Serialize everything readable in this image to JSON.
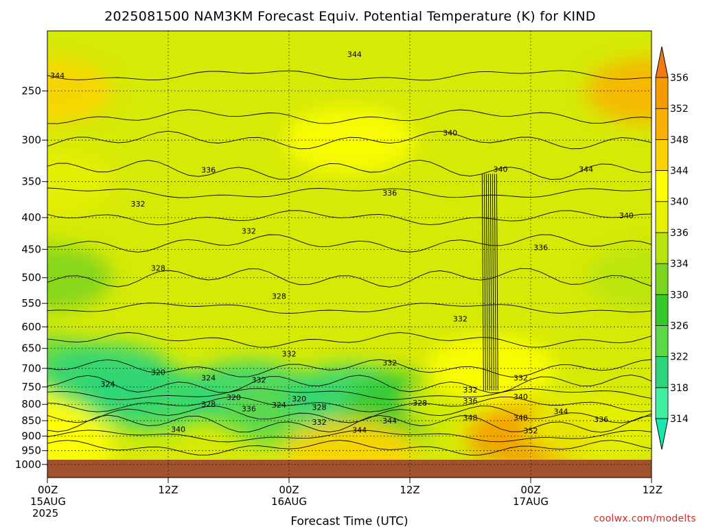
{
  "chart_data": {
    "type": "heatmap",
    "title": "2025081500 NAM3KM Forecast Equiv. Potential Temperature (K) for KIND",
    "xlabel": "Forecast Time (UTC)",
    "ylabel": "",
    "credit": "coolwx.com/modelts",
    "x_range_hours": [
      0,
      60
    ],
    "x_ticks": [
      {
        "hour": 0,
        "label": "00Z",
        "sub1": "15AUG",
        "sub2": "2025"
      },
      {
        "hour": 12,
        "label": "12Z",
        "sub1": "",
        "sub2": ""
      },
      {
        "hour": 24,
        "label": "00Z",
        "sub1": "16AUG",
        "sub2": ""
      },
      {
        "hour": 36,
        "label": "12Z",
        "sub1": "",
        "sub2": ""
      },
      {
        "hour": 48,
        "label": "00Z",
        "sub1": "17AUG",
        "sub2": ""
      },
      {
        "hour": 60,
        "label": "12Z",
        "sub1": "",
        "sub2": ""
      }
    ],
    "y_scale": "log",
    "y_range_hpa": [
      1050,
      200
    ],
    "y_ticks": [
      250,
      300,
      350,
      400,
      450,
      500,
      550,
      600,
      650,
      700,
      750,
      800,
      850,
      900,
      950,
      1000
    ],
    "grid": true,
    "surface_fill_color": "#a0522d",
    "colorbar": {
      "levels": [
        314,
        318,
        322,
        326,
        330,
        334,
        336,
        340,
        344,
        348,
        352,
        356
      ],
      "colors": [
        "#17e8b0",
        "#40eea0",
        "#2bd579",
        "#5cd84a",
        "#35c92b",
        "#7ad420",
        "#b7e410",
        "#e8f000",
        "#ffff00",
        "#fcd200",
        "#f9b000",
        "#f59a00",
        "#f07c10"
      ]
    },
    "field_samples": [
      {
        "hour": 0,
        "p": 250,
        "value": 344
      },
      {
        "hour": 0,
        "p": 350,
        "value": 336
      },
      {
        "hour": 0,
        "p": 500,
        "value": 330
      },
      {
        "hour": 0,
        "p": 700,
        "value": 324
      },
      {
        "hour": 0,
        "p": 850,
        "value": 340
      },
      {
        "hour": 0,
        "p": 950,
        "value": 342
      },
      {
        "hour": 6,
        "p": 720,
        "value": 318
      },
      {
        "hour": 10,
        "p": 780,
        "value": 320
      },
      {
        "hour": 20,
        "p": 770,
        "value": 320
      },
      {
        "hour": 24,
        "p": 830,
        "value": 324
      },
      {
        "hour": 30,
        "p": 780,
        "value": 318
      },
      {
        "hour": 36,
        "p": 800,
        "value": 328
      },
      {
        "hour": 42,
        "p": 800,
        "value": 336
      },
      {
        "hour": 44,
        "p": 700,
        "value": 340
      },
      {
        "hour": 48,
        "p": 900,
        "value": 352
      },
      {
        "hour": 54,
        "p": 870,
        "value": 336
      },
      {
        "hour": 60,
        "p": 250,
        "value": 350
      },
      {
        "hour": 60,
        "p": 500,
        "value": 334
      },
      {
        "hour": 30,
        "p": 300,
        "value": 340
      },
      {
        "hour": 30,
        "p": 950,
        "value": 346
      }
    ],
    "contour_labels": [
      {
        "text": "344",
        "hour": 30.5,
        "p": 218
      },
      {
        "text": "344",
        "hour": 1.0,
        "p": 236
      },
      {
        "text": "340",
        "hour": 40.0,
        "p": 292
      },
      {
        "text": "336",
        "hour": 16.0,
        "p": 335
      },
      {
        "text": "340",
        "hour": 45.0,
        "p": 334
      },
      {
        "text": "344",
        "hour": 53.5,
        "p": 334
      },
      {
        "text": "332",
        "hour": 9.0,
        "p": 380
      },
      {
        "text": "336",
        "hour": 34.0,
        "p": 365
      },
      {
        "text": "340",
        "hour": 57.5,
        "p": 397
      },
      {
        "text": "332",
        "hour": 20.0,
        "p": 420
      },
      {
        "text": "336",
        "hour": 49.0,
        "p": 447
      },
      {
        "text": "328",
        "hour": 11.0,
        "p": 482
      },
      {
        "text": "328",
        "hour": 23.0,
        "p": 535
      },
      {
        "text": "332",
        "hour": 41.0,
        "p": 582
      },
      {
        "text": "332",
        "hour": 24.0,
        "p": 663
      },
      {
        "text": "332",
        "hour": 34.0,
        "p": 685
      },
      {
        "text": "320",
        "hour": 11.0,
        "p": 710
      },
      {
        "text": "324",
        "hour": 16.0,
        "p": 725
      },
      {
        "text": "324",
        "hour": 6.0,
        "p": 742
      },
      {
        "text": "332",
        "hour": 21.0,
        "p": 730
      },
      {
        "text": "332",
        "hour": 47.0,
        "p": 725
      },
      {
        "text": "332",
        "hour": 42.0,
        "p": 758
      },
      {
        "text": "320",
        "hour": 18.5,
        "p": 779
      },
      {
        "text": "340",
        "hour": 47.0,
        "p": 777
      },
      {
        "text": "336",
        "hour": 42.0,
        "p": 789
      },
      {
        "text": "320",
        "hour": 25.0,
        "p": 783
      },
      {
        "text": "328",
        "hour": 16.0,
        "p": 800
      },
      {
        "text": "324",
        "hour": 23.0,
        "p": 802
      },
      {
        "text": "328",
        "hour": 27.0,
        "p": 809
      },
      {
        "text": "328",
        "hour": 37.0,
        "p": 795
      },
      {
        "text": "336",
        "hour": 20.0,
        "p": 813
      },
      {
        "text": "344",
        "hour": 51.0,
        "p": 821
      },
      {
        "text": "348",
        "hour": 42.0,
        "p": 840
      },
      {
        "text": "348",
        "hour": 47.0,
        "p": 840
      },
      {
        "text": "336",
        "hour": 55.0,
        "p": 846
      },
      {
        "text": "332",
        "hour": 27.0,
        "p": 854
      },
      {
        "text": "344",
        "hour": 34.0,
        "p": 850
      },
      {
        "text": "344",
        "hour": 31.0,
        "p": 880
      },
      {
        "text": "340",
        "hour": 13.0,
        "p": 877
      },
      {
        "text": "352",
        "hour": 48.0,
        "p": 882
      }
    ]
  }
}
